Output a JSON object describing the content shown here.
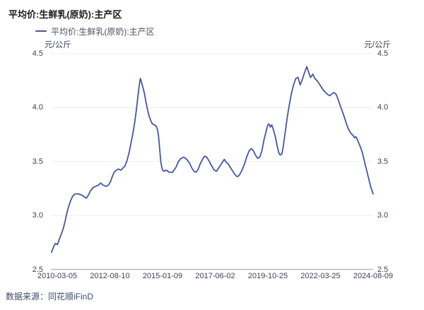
{
  "header": {
    "title": "平均价:生鲜乳(原奶):主产区"
  },
  "legend": {
    "label": "平均价:生鲜乳(原奶):主产区"
  },
  "axes": {
    "left_unit": "元/公斤",
    "right_unit": "元/公斤"
  },
  "footer": {
    "source": "数据来源：同花顺iFinD"
  },
  "colors": {
    "line": "#4556A5",
    "grid": "#ECEDF2",
    "axis": "#B3BAC6",
    "tick_text": "#3b4354",
    "title_text": "#1a1a1a",
    "source_text": "#3e4a66"
  },
  "chart_data": {
    "type": "line",
    "title": "平均价:生鲜乳(原奶):主产区",
    "ylabel": "元/公斤",
    "ylim": [
      2.5,
      4.5
    ],
    "ytick_values": [
      4.5,
      4.0,
      3.5,
      3.0,
      2.5
    ],
    "ytick_labels": [
      "4.5",
      "4.0",
      "3.5",
      "3.0",
      "2.5"
    ],
    "xlim": [
      2010.17,
      2024.6
    ],
    "xtick_labels": [
      "2010-03-05",
      "2012-08-10",
      "2015-01-09",
      "2017-06-02",
      "2019-10-25",
      "2022-03-25",
      "2024-08-09"
    ],
    "grid": "horizontal",
    "legend_position": "top-left",
    "series": [
      {
        "name": "平均价:生鲜乳(原奶):主产区",
        "color": "#4556A5",
        "x_unit": "decimal_year",
        "points": [
          [
            2010.2,
            2.66
          ],
          [
            2010.26,
            2.69
          ],
          [
            2010.31,
            2.72
          ],
          [
            2010.38,
            2.74
          ],
          [
            2010.46,
            2.73
          ],
          [
            2010.55,
            2.78
          ],
          [
            2010.64,
            2.83
          ],
          [
            2010.71,
            2.87
          ],
          [
            2010.8,
            2.94
          ],
          [
            2010.87,
            3.01
          ],
          [
            2010.96,
            3.08
          ],
          [
            2011.06,
            3.14
          ],
          [
            2011.15,
            3.18
          ],
          [
            2011.25,
            3.2
          ],
          [
            2011.4,
            3.2
          ],
          [
            2011.55,
            3.19
          ],
          [
            2011.68,
            3.17
          ],
          [
            2011.76,
            3.16
          ],
          [
            2011.85,
            3.19
          ],
          [
            2011.95,
            3.23
          ],
          [
            2012.07,
            3.26
          ],
          [
            2012.17,
            3.27
          ],
          [
            2012.28,
            3.28
          ],
          [
            2012.4,
            3.3
          ],
          [
            2012.52,
            3.28
          ],
          [
            2012.63,
            3.27
          ],
          [
            2012.74,
            3.28
          ],
          [
            2012.83,
            3.31
          ],
          [
            2012.92,
            3.36
          ],
          [
            2013.0,
            3.4
          ],
          [
            2013.1,
            3.42
          ],
          [
            2013.2,
            3.43
          ],
          [
            2013.3,
            3.42
          ],
          [
            2013.4,
            3.44
          ],
          [
            2013.49,
            3.46
          ],
          [
            2013.58,
            3.51
          ],
          [
            2013.67,
            3.58
          ],
          [
            2013.76,
            3.67
          ],
          [
            2013.85,
            3.77
          ],
          [
            2013.93,
            3.87
          ],
          [
            2014.0,
            3.98
          ],
          [
            2014.06,
            4.09
          ],
          [
            2014.11,
            4.18
          ],
          [
            2014.15,
            4.24
          ],
          [
            2014.18,
            4.27
          ],
          [
            2014.23,
            4.23
          ],
          [
            2014.29,
            4.19
          ],
          [
            2014.36,
            4.13
          ],
          [
            2014.43,
            4.05
          ],
          [
            2014.5,
            3.98
          ],
          [
            2014.57,
            3.92
          ],
          [
            2014.64,
            3.88
          ],
          [
            2014.71,
            3.85
          ],
          [
            2014.8,
            3.84
          ],
          [
            2014.88,
            3.83
          ],
          [
            2014.94,
            3.8
          ],
          [
            2014.99,
            3.74
          ],
          [
            2015.04,
            3.62
          ],
          [
            2015.09,
            3.5
          ],
          [
            2015.14,
            3.44
          ],
          [
            2015.21,
            3.41
          ],
          [
            2015.34,
            3.42
          ],
          [
            2015.47,
            3.4
          ],
          [
            2015.62,
            3.4
          ],
          [
            2015.78,
            3.45
          ],
          [
            2015.88,
            3.5
          ],
          [
            2016.0,
            3.53
          ],
          [
            2016.13,
            3.54
          ],
          [
            2016.26,
            3.52
          ],
          [
            2016.39,
            3.48
          ],
          [
            2016.48,
            3.44
          ],
          [
            2016.58,
            3.41
          ],
          [
            2016.67,
            3.4
          ],
          [
            2016.77,
            3.43
          ],
          [
            2016.86,
            3.48
          ],
          [
            2016.96,
            3.52
          ],
          [
            2017.05,
            3.55
          ],
          [
            2017.15,
            3.54
          ],
          [
            2017.24,
            3.51
          ],
          [
            2017.37,
            3.46
          ],
          [
            2017.49,
            3.42
          ],
          [
            2017.59,
            3.41
          ],
          [
            2017.68,
            3.44
          ],
          [
            2017.78,
            3.47
          ],
          [
            2017.87,
            3.5
          ],
          [
            2017.94,
            3.52
          ],
          [
            2018.0,
            3.5
          ],
          [
            2018.1,
            3.48
          ],
          [
            2018.22,
            3.44
          ],
          [
            2018.32,
            3.41
          ],
          [
            2018.41,
            3.38
          ],
          [
            2018.51,
            3.36
          ],
          [
            2018.6,
            3.37
          ],
          [
            2018.73,
            3.42
          ],
          [
            2018.86,
            3.49
          ],
          [
            2018.95,
            3.55
          ],
          [
            2019.05,
            3.6
          ],
          [
            2019.14,
            3.62
          ],
          [
            2019.24,
            3.6
          ],
          [
            2019.33,
            3.56
          ],
          [
            2019.43,
            3.53
          ],
          [
            2019.52,
            3.54
          ],
          [
            2019.62,
            3.6
          ],
          [
            2019.71,
            3.7
          ],
          [
            2019.81,
            3.78
          ],
          [
            2019.87,
            3.83
          ],
          [
            2019.93,
            3.85
          ],
          [
            2020.0,
            3.82
          ],
          [
            2020.06,
            3.84
          ],
          [
            2020.13,
            3.8
          ],
          [
            2020.22,
            3.73
          ],
          [
            2020.32,
            3.63
          ],
          [
            2020.38,
            3.58
          ],
          [
            2020.44,
            3.56
          ],
          [
            2020.51,
            3.57
          ],
          [
            2020.57,
            3.63
          ],
          [
            2020.67,
            3.78
          ],
          [
            2020.76,
            3.92
          ],
          [
            2020.86,
            4.04
          ],
          [
            2020.95,
            4.14
          ],
          [
            2021.05,
            4.22
          ],
          [
            2021.14,
            4.27
          ],
          [
            2021.24,
            4.28
          ],
          [
            2021.33,
            4.21
          ],
          [
            2021.43,
            4.26
          ],
          [
            2021.52,
            4.32
          ],
          [
            2021.63,
            4.38
          ],
          [
            2021.74,
            4.31
          ],
          [
            2021.8,
            4.28
          ],
          [
            2021.9,
            4.31
          ],
          [
            2021.99,
            4.27
          ],
          [
            2022.09,
            4.25
          ],
          [
            2022.19,
            4.22
          ],
          [
            2022.28,
            4.19
          ],
          [
            2022.38,
            4.16
          ],
          [
            2022.47,
            4.14
          ],
          [
            2022.57,
            4.12
          ],
          [
            2022.66,
            4.11
          ],
          [
            2022.76,
            4.13
          ],
          [
            2022.85,
            4.14
          ],
          [
            2022.95,
            4.12
          ],
          [
            2023.04,
            4.07
          ],
          [
            2023.14,
            4.01
          ],
          [
            2023.23,
            3.96
          ],
          [
            2023.33,
            3.9
          ],
          [
            2023.42,
            3.84
          ],
          [
            2023.52,
            3.79
          ],
          [
            2023.61,
            3.76
          ],
          [
            2023.71,
            3.74
          ],
          [
            2023.77,
            3.72
          ],
          [
            2023.83,
            3.73
          ],
          [
            2023.9,
            3.7
          ],
          [
            2023.96,
            3.67
          ],
          [
            2024.06,
            3.62
          ],
          [
            2024.12,
            3.58
          ],
          [
            2024.18,
            3.53
          ],
          [
            2024.25,
            3.47
          ],
          [
            2024.31,
            3.42
          ],
          [
            2024.38,
            3.36
          ],
          [
            2024.44,
            3.31
          ],
          [
            2024.5,
            3.26
          ],
          [
            2024.57,
            3.22
          ],
          [
            2024.6,
            3.2
          ]
        ]
      }
    ]
  }
}
